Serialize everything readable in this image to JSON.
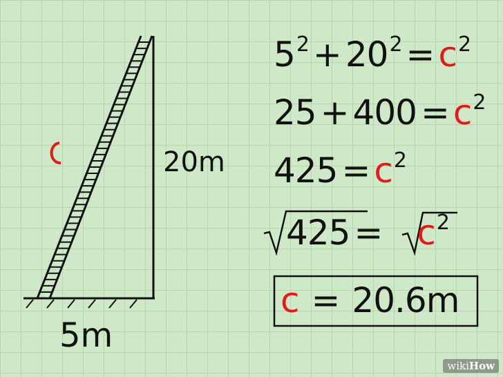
{
  "diagram": {
    "hypotenuse_label": "c",
    "height_label": "20m",
    "base_label": "5m"
  },
  "equations": [
    {
      "parts": [
        "5",
        "2",
        "+",
        "20",
        "2",
        "=",
        "c",
        "2"
      ]
    },
    {
      "parts": [
        "25",
        "+",
        "400",
        "=",
        "c",
        "2"
      ]
    },
    {
      "parts": [
        "425",
        "=",
        "c",
        "2"
      ]
    },
    {
      "parts": [
        "425",
        "=",
        "c",
        "2"
      ]
    },
    {
      "parts": [
        "c",
        "=",
        "20.6m"
      ]
    }
  ],
  "watermark": {
    "prefix": "wiki",
    "suffix": "How"
  },
  "colors": {
    "ink": "#111111",
    "accent": "#e01b1b",
    "grid": "#b6d6ad",
    "background": "#cfe8c8"
  }
}
